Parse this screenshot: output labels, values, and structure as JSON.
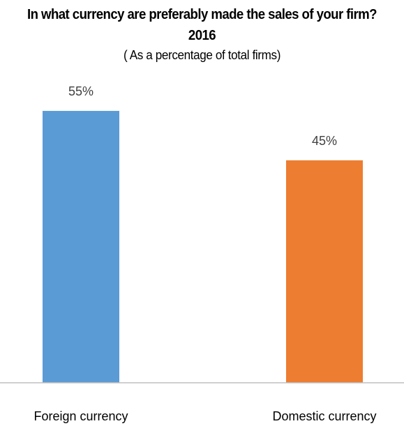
{
  "chart_data": {
    "type": "bar",
    "title": "In what currency are preferably made the sales of your firm? 2016",
    "subtitle": "( As a percentage of total firms)",
    "categories": [
      "Foreign currency",
      "Domestic currency"
    ],
    "values": [
      55,
      45
    ],
    "data_labels": [
      "55%",
      "45%"
    ],
    "colors": [
      "#5b9bd5",
      "#ed7d31"
    ],
    "ylim": [
      0,
      60
    ],
    "grid": false,
    "legend": "none"
  }
}
